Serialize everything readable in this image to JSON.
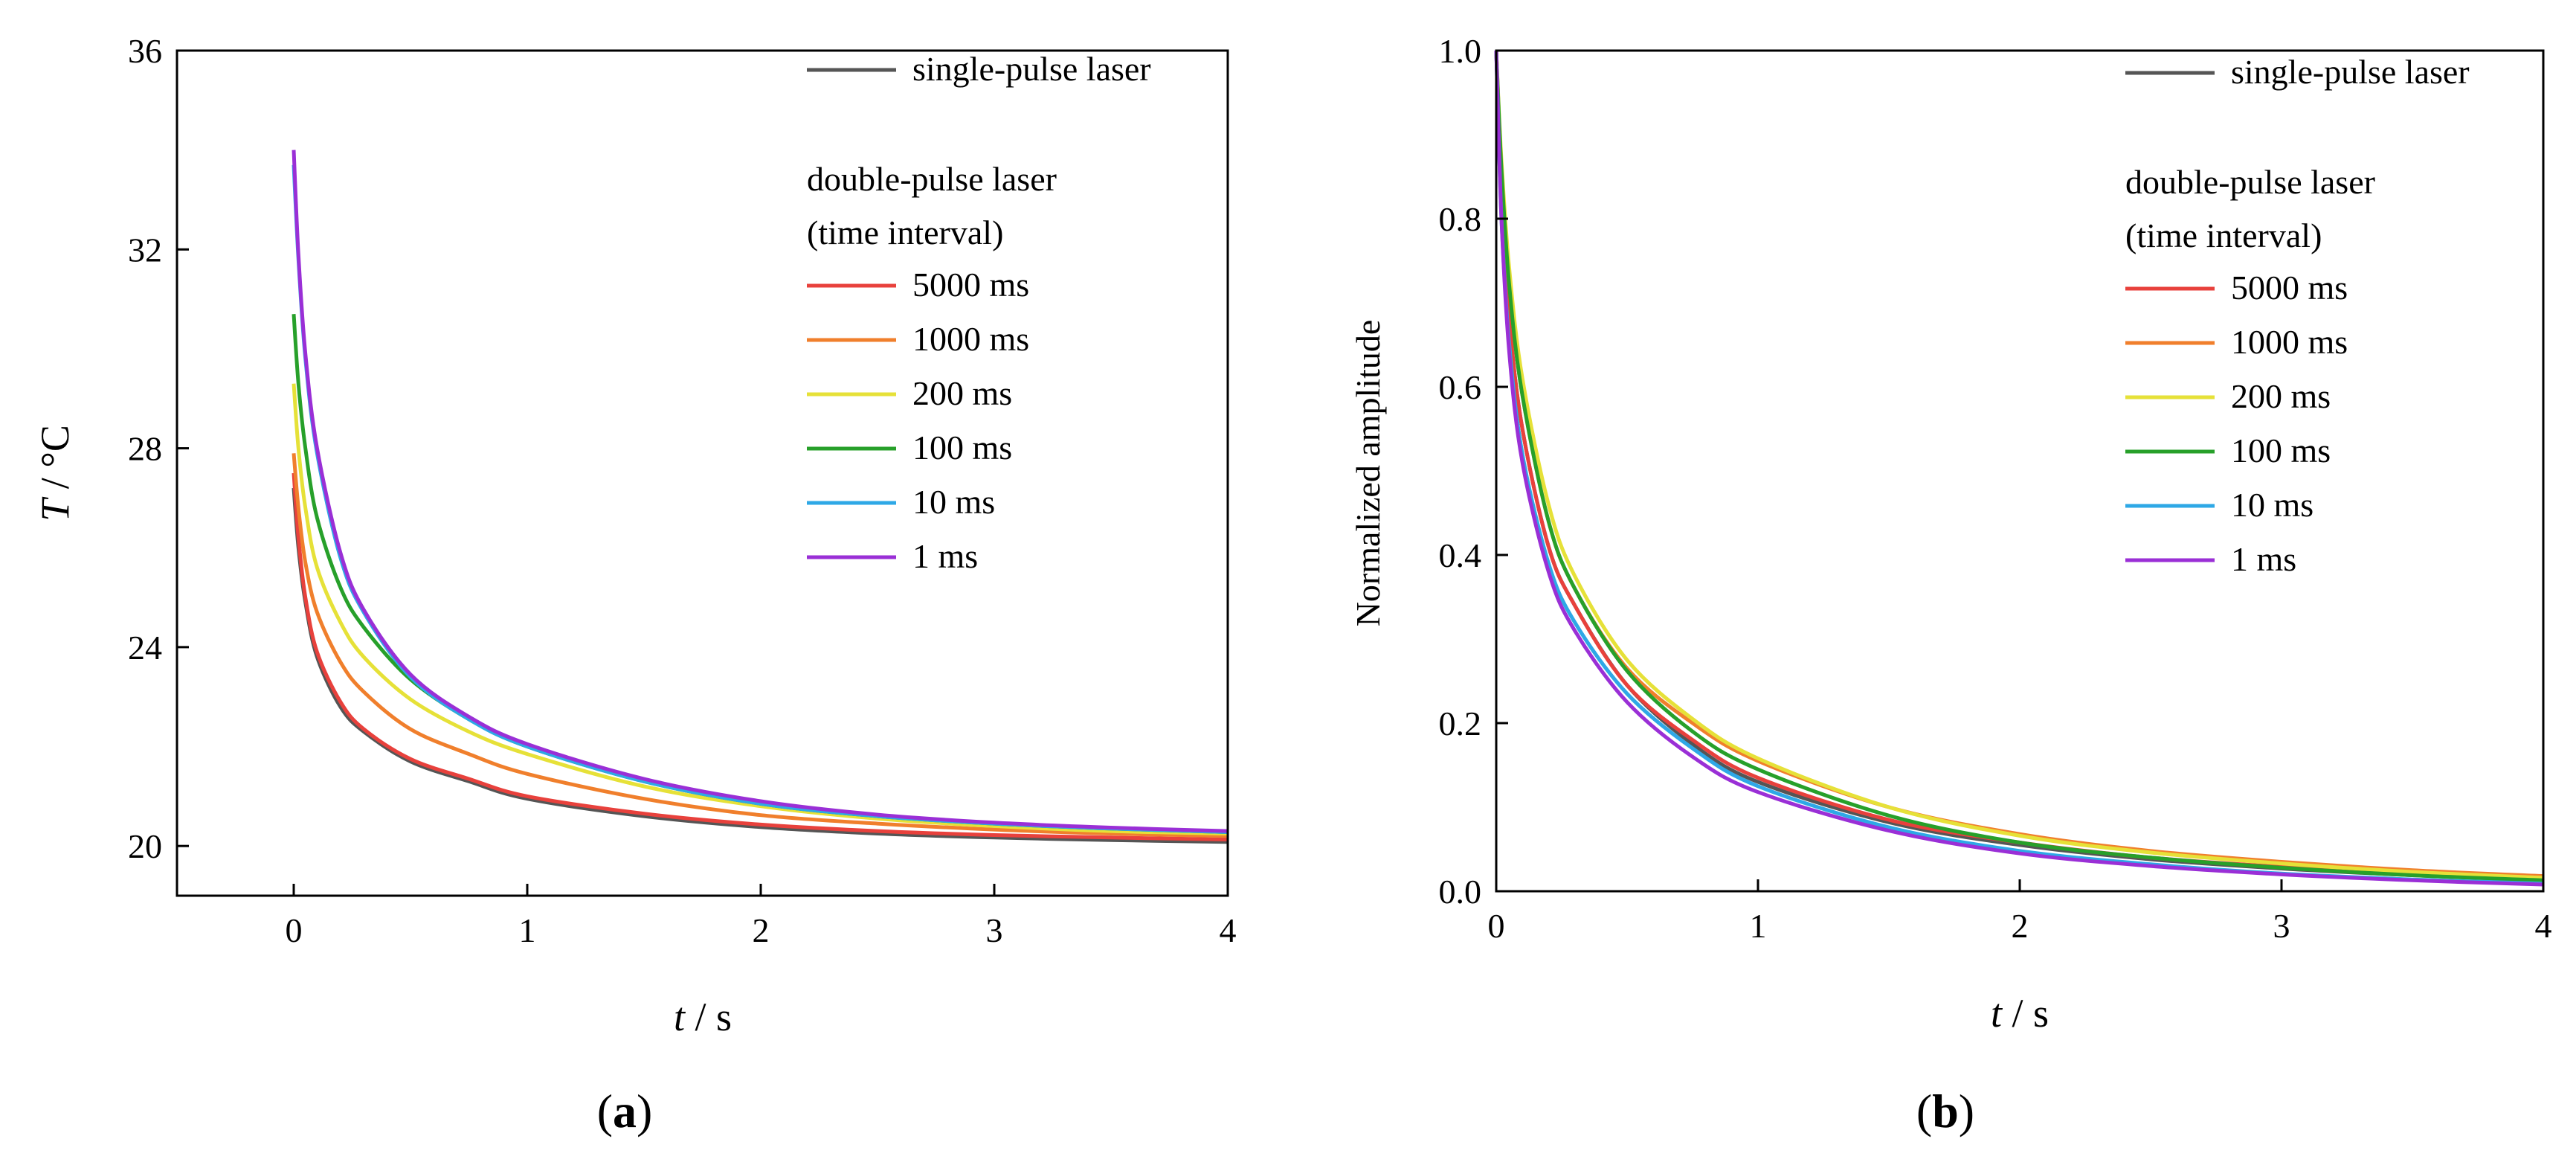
{
  "chart_data": [
    {
      "type": "line",
      "panel_label": "(a)",
      "xlabel_var": "t",
      "xlabel_unit": " / s",
      "ylabel_var": "T",
      "ylabel_unit": " / °C",
      "xlim": [
        -0.5,
        4
      ],
      "ylim": [
        19,
        36
      ],
      "xticks": [
        0,
        1,
        2,
        3,
        4
      ],
      "yticks": [
        20,
        24,
        28,
        32,
        36
      ],
      "legend_single_header": "single-pulse laser",
      "legend_double_header_1": "double-pulse laser",
      "legend_double_header_2": "(time interval)",
      "legend_position": "top-right",
      "series": [
        {
          "name": "single-pulse laser",
          "color": "#555555",
          "x": [
            0,
            0.02,
            0.05,
            0.1,
            0.2,
            0.3,
            0.5,
            0.75,
            1.0,
            1.5,
            2.0,
            2.5,
            3.0,
            3.5,
            4.0
          ],
          "values": [
            27.2,
            26.0,
            24.9,
            23.8,
            22.8,
            22.3,
            21.7,
            21.3,
            20.95,
            20.6,
            20.38,
            20.25,
            20.17,
            20.12,
            20.08
          ]
        },
        {
          "name": "5000 ms",
          "color": "#e8413c",
          "x": [
            0,
            0.02,
            0.05,
            0.1,
            0.2,
            0.3,
            0.5,
            0.75,
            1.0,
            1.5,
            2.0,
            2.5,
            3.0,
            3.5,
            4.0
          ],
          "values": [
            27.5,
            26.2,
            25.0,
            23.9,
            22.9,
            22.35,
            21.75,
            21.35,
            21.0,
            20.65,
            20.43,
            20.3,
            20.22,
            20.17,
            20.13
          ]
        },
        {
          "name": "1000 ms",
          "color": "#f07f2c",
          "x": [
            0,
            0.02,
            0.05,
            0.1,
            0.2,
            0.3,
            0.5,
            0.75,
            1.0,
            1.5,
            2.0,
            2.5,
            3.0,
            3.5,
            4.0
          ],
          "values": [
            27.9,
            26.8,
            25.7,
            24.7,
            23.7,
            23.1,
            22.35,
            21.85,
            21.45,
            20.95,
            20.62,
            20.45,
            20.33,
            20.25,
            20.2
          ]
        },
        {
          "name": "200 ms",
          "color": "#e6e138",
          "x": [
            0,
            0.02,
            0.05,
            0.1,
            0.2,
            0.3,
            0.5,
            0.75,
            1.0,
            1.5,
            2.0,
            2.5,
            3.0,
            3.5,
            4.0
          ],
          "values": [
            29.3,
            28.0,
            26.8,
            25.6,
            24.5,
            23.8,
            22.95,
            22.3,
            21.85,
            21.2,
            20.8,
            20.55,
            20.4,
            20.3,
            20.25
          ]
        },
        {
          "name": "100 ms",
          "color": "#27a02a",
          "x": [
            0,
            0.02,
            0.05,
            0.1,
            0.2,
            0.3,
            0.5,
            0.75,
            1.0,
            1.5,
            2.0,
            2.5,
            3.0,
            3.5,
            4.0
          ],
          "values": [
            30.7,
            29.3,
            28.0,
            26.6,
            25.2,
            24.4,
            23.35,
            22.55,
            22.0,
            21.3,
            20.85,
            20.6,
            20.45,
            20.35,
            20.28
          ]
        },
        {
          "name": "10 ms",
          "color": "#2ea8e6",
          "x": [
            0,
            0.02,
            0.05,
            0.1,
            0.2,
            0.3,
            0.5,
            0.75,
            1.0,
            1.5,
            2.0,
            2.5,
            3.0,
            3.5,
            4.0
          ],
          "values": [
            33.7,
            31.8,
            29.8,
            27.9,
            25.8,
            24.7,
            23.4,
            22.55,
            22.0,
            21.3,
            20.85,
            20.6,
            20.45,
            20.35,
            20.28
          ]
        },
        {
          "name": "1 ms",
          "color": "#9a2fd6",
          "x": [
            0,
            0.02,
            0.05,
            0.1,
            0.2,
            0.3,
            0.5,
            0.75,
            1.0,
            1.5,
            2.0,
            2.5,
            3.0,
            3.5,
            4.0
          ],
          "values": [
            34.0,
            31.9,
            29.9,
            28.0,
            25.9,
            24.75,
            23.45,
            22.6,
            22.05,
            21.35,
            20.9,
            20.63,
            20.47,
            20.37,
            20.3
          ]
        }
      ]
    },
    {
      "type": "line",
      "panel_label": "(b)",
      "xlabel_var": "t",
      "xlabel_unit": " / s",
      "ylabel": "Normalized amplitude",
      "xlim": [
        0,
        4
      ],
      "ylim": [
        0,
        1.0
      ],
      "xticks": [
        0,
        1,
        2,
        3,
        4
      ],
      "yticks": [
        0.0,
        0.2,
        0.4,
        0.6,
        0.8,
        1.0
      ],
      "ytick_labels": [
        "0.0",
        "0.2",
        "0.4",
        "0.6",
        "0.8",
        "1.0"
      ],
      "legend_single_header": "single-pulse laser",
      "legend_double_header_1": "double-pulse laser",
      "legend_double_header_2": "(time interval)",
      "legend_position": "top-right",
      "series": [
        {
          "name": "single-pulse laser",
          "color": "#555555",
          "x": [
            0,
            0.02,
            0.05,
            0.1,
            0.2,
            0.3,
            0.5,
            0.75,
            1.0,
            1.5,
            2.0,
            2.5,
            3.0,
            3.5,
            4.0
          ],
          "values": [
            1.0,
            0.83,
            0.68,
            0.55,
            0.41,
            0.34,
            0.245,
            0.175,
            0.13,
            0.082,
            0.055,
            0.038,
            0.027,
            0.019,
            0.013
          ]
        },
        {
          "name": "5000 ms",
          "color": "#e8413c",
          "x": [
            0,
            0.02,
            0.05,
            0.1,
            0.2,
            0.3,
            0.5,
            0.75,
            1.0,
            1.5,
            2.0,
            2.5,
            3.0,
            3.5,
            4.0
          ],
          "values": [
            1.0,
            0.83,
            0.68,
            0.55,
            0.41,
            0.34,
            0.245,
            0.18,
            0.135,
            0.085,
            0.058,
            0.04,
            0.029,
            0.021,
            0.015
          ]
        },
        {
          "name": "1000 ms",
          "color": "#f07f2c",
          "x": [
            0,
            0.02,
            0.05,
            0.1,
            0.2,
            0.3,
            0.5,
            0.75,
            1.0,
            1.5,
            2.0,
            2.5,
            3.0,
            3.5,
            4.0
          ],
          "values": [
            1.0,
            0.86,
            0.72,
            0.59,
            0.44,
            0.36,
            0.265,
            0.2,
            0.155,
            0.1,
            0.068,
            0.048,
            0.035,
            0.025,
            0.018
          ]
        },
        {
          "name": "200 ms",
          "color": "#e6e138",
          "x": [
            0,
            0.02,
            0.05,
            0.1,
            0.2,
            0.3,
            0.5,
            0.75,
            1.0,
            1.5,
            2.0,
            2.5,
            3.0,
            3.5,
            4.0
          ],
          "values": [
            1.0,
            0.87,
            0.74,
            0.61,
            0.46,
            0.375,
            0.275,
            0.205,
            0.158,
            0.1,
            0.066,
            0.046,
            0.033,
            0.023,
            0.016
          ]
        },
        {
          "name": "100 ms",
          "color": "#27a02a",
          "x": [
            0,
            0.02,
            0.05,
            0.1,
            0.2,
            0.3,
            0.5,
            0.75,
            1.0,
            1.5,
            2.0,
            2.5,
            3.0,
            3.5,
            4.0
          ],
          "values": [
            1.0,
            0.86,
            0.72,
            0.59,
            0.44,
            0.36,
            0.262,
            0.19,
            0.145,
            0.09,
            0.058,
            0.04,
            0.028,
            0.019,
            0.013
          ]
        },
        {
          "name": "10 ms",
          "color": "#2ea8e6",
          "x": [
            0,
            0.02,
            0.05,
            0.1,
            0.2,
            0.3,
            0.5,
            0.75,
            1.0,
            1.5,
            2.0,
            2.5,
            3.0,
            3.5,
            4.0
          ],
          "values": [
            1.0,
            0.8,
            0.65,
            0.52,
            0.39,
            0.32,
            0.235,
            0.17,
            0.125,
            0.076,
            0.048,
            0.032,
            0.021,
            0.014,
            0.009
          ]
        },
        {
          "name": "1 ms",
          "color": "#9a2fd6",
          "x": [
            0,
            0.02,
            0.05,
            0.1,
            0.2,
            0.3,
            0.5,
            0.75,
            1.0,
            1.5,
            2.0,
            2.5,
            3.0,
            3.5,
            4.0
          ],
          "values": [
            1.0,
            0.8,
            0.64,
            0.51,
            0.38,
            0.31,
            0.225,
            0.16,
            0.118,
            0.072,
            0.045,
            0.03,
            0.02,
            0.013,
            0.008
          ]
        }
      ]
    }
  ]
}
